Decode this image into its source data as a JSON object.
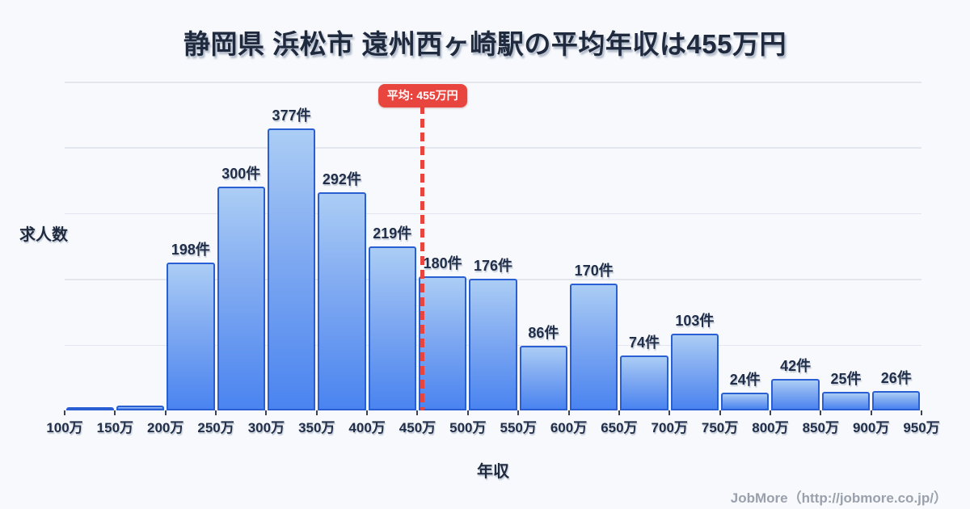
{
  "title": "静岡県 浜松市 遠州西ヶ崎駅の平均年収は455万円",
  "axes": {
    "y_label": "求人数",
    "x_label": "年収"
  },
  "average_marker": {
    "label": "平均: 455万円",
    "value_man_yen": 455
  },
  "footer": {
    "credit": "JobMore（http://jobmore.co.jp/）"
  },
  "colors": {
    "background": "#f7f9fc",
    "title_text": "#1f2a3f",
    "bar_border": "#2a5fd3",
    "bar_fill_top": "#abcdf5",
    "bar_fill_bottom": "#4a84f0",
    "grid_line": "#e3e6ee",
    "average_red": "#e8453f",
    "footer_text": "#9aa1ac"
  },
  "chart_data": {
    "type": "bar",
    "title": "静岡県 浜松市 遠州西ヶ崎駅の平均年収は455万円",
    "xlabel": "年収",
    "ylabel": "求人数",
    "bin_edges_man_yen": [
      100,
      150,
      200,
      250,
      300,
      350,
      400,
      450,
      500,
      550,
      600,
      650,
      700,
      750,
      800,
      850,
      900,
      950
    ],
    "x_tick_labels": [
      "100万",
      "150万",
      "200万",
      "250万",
      "300万",
      "350万",
      "400万",
      "450万",
      "500万",
      "550万",
      "600万",
      "650万",
      "700万",
      "750万",
      "800万",
      "850万",
      "900万",
      "950万"
    ],
    "values": [
      2,
      6,
      198,
      300,
      377,
      292,
      219,
      180,
      176,
      86,
      170,
      74,
      103,
      24,
      42,
      25,
      26
    ],
    "bar_labels": [
      "",
      "",
      "198件",
      "300件",
      "377件",
      "292件",
      "219件",
      "180件",
      "176件",
      "86件",
      "170件",
      "74件",
      "103件",
      "24件",
      "42件",
      "25件",
      "26件"
    ],
    "ylim": [
      0,
      440
    ],
    "grid": "horizontal",
    "gridline_intervals": 5,
    "legend": "none",
    "average_line": {
      "x_man_yen": 455,
      "label": "平均: 455万円",
      "style": "dashed-vertical",
      "color": "#e8453f"
    }
  }
}
